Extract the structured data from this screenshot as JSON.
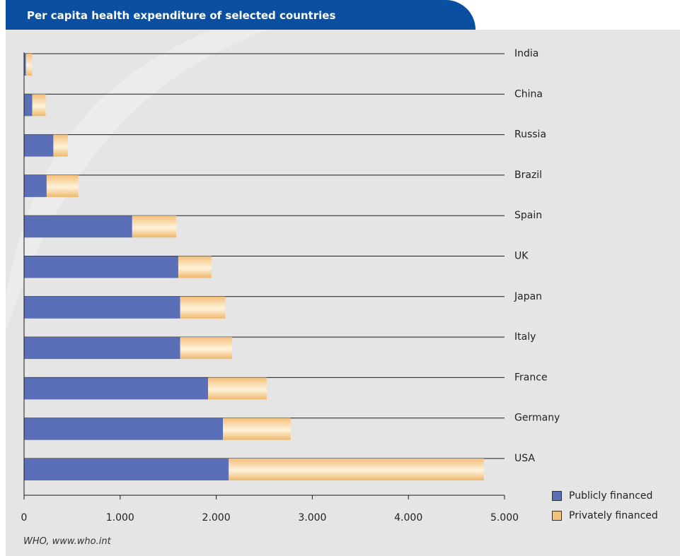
{
  "header": {
    "title": "Per capita health expenditure of selected countries"
  },
  "source": "WHO, www.who.int",
  "legend": [
    {
      "label": "Publicly financed",
      "color": "#5a6fb8"
    },
    {
      "label": "Privately financed",
      "color": "#f2c27c"
    }
  ],
  "chart_data": {
    "type": "bar",
    "orientation": "horizontal",
    "stacked": true,
    "title": "Per capita health expenditure of selected countries",
    "categories": [
      "India",
      "China",
      "Russia",
      "Brazil",
      "Spain",
      "UK",
      "Japan",
      "Italy",
      "France",
      "Germany",
      "USA"
    ],
    "series": [
      {
        "name": "Publicly financed",
        "color": "#5a6fb8",
        "values": [
          20,
          85,
          305,
          235,
          1125,
          1605,
          1625,
          1625,
          1915,
          2070,
          2130
        ]
      },
      {
        "name": "Privately financed",
        "color": "#f2c27c",
        "values": [
          65,
          140,
          150,
          330,
          460,
          345,
          470,
          540,
          610,
          705,
          2655
        ]
      }
    ],
    "xlim": [
      0,
      5000
    ],
    "xticks": [
      0,
      1000,
      2000,
      3000,
      4000,
      5000
    ],
    "xtick_labels": [
      "0",
      "1.000",
      "2.000",
      "3.000",
      "4.000",
      "5.000"
    ],
    "xlabel": "",
    "ylabel": "",
    "legend_position": "bottom-right",
    "category_labels_position": "right",
    "grid": "horizontal lines per category"
  }
}
